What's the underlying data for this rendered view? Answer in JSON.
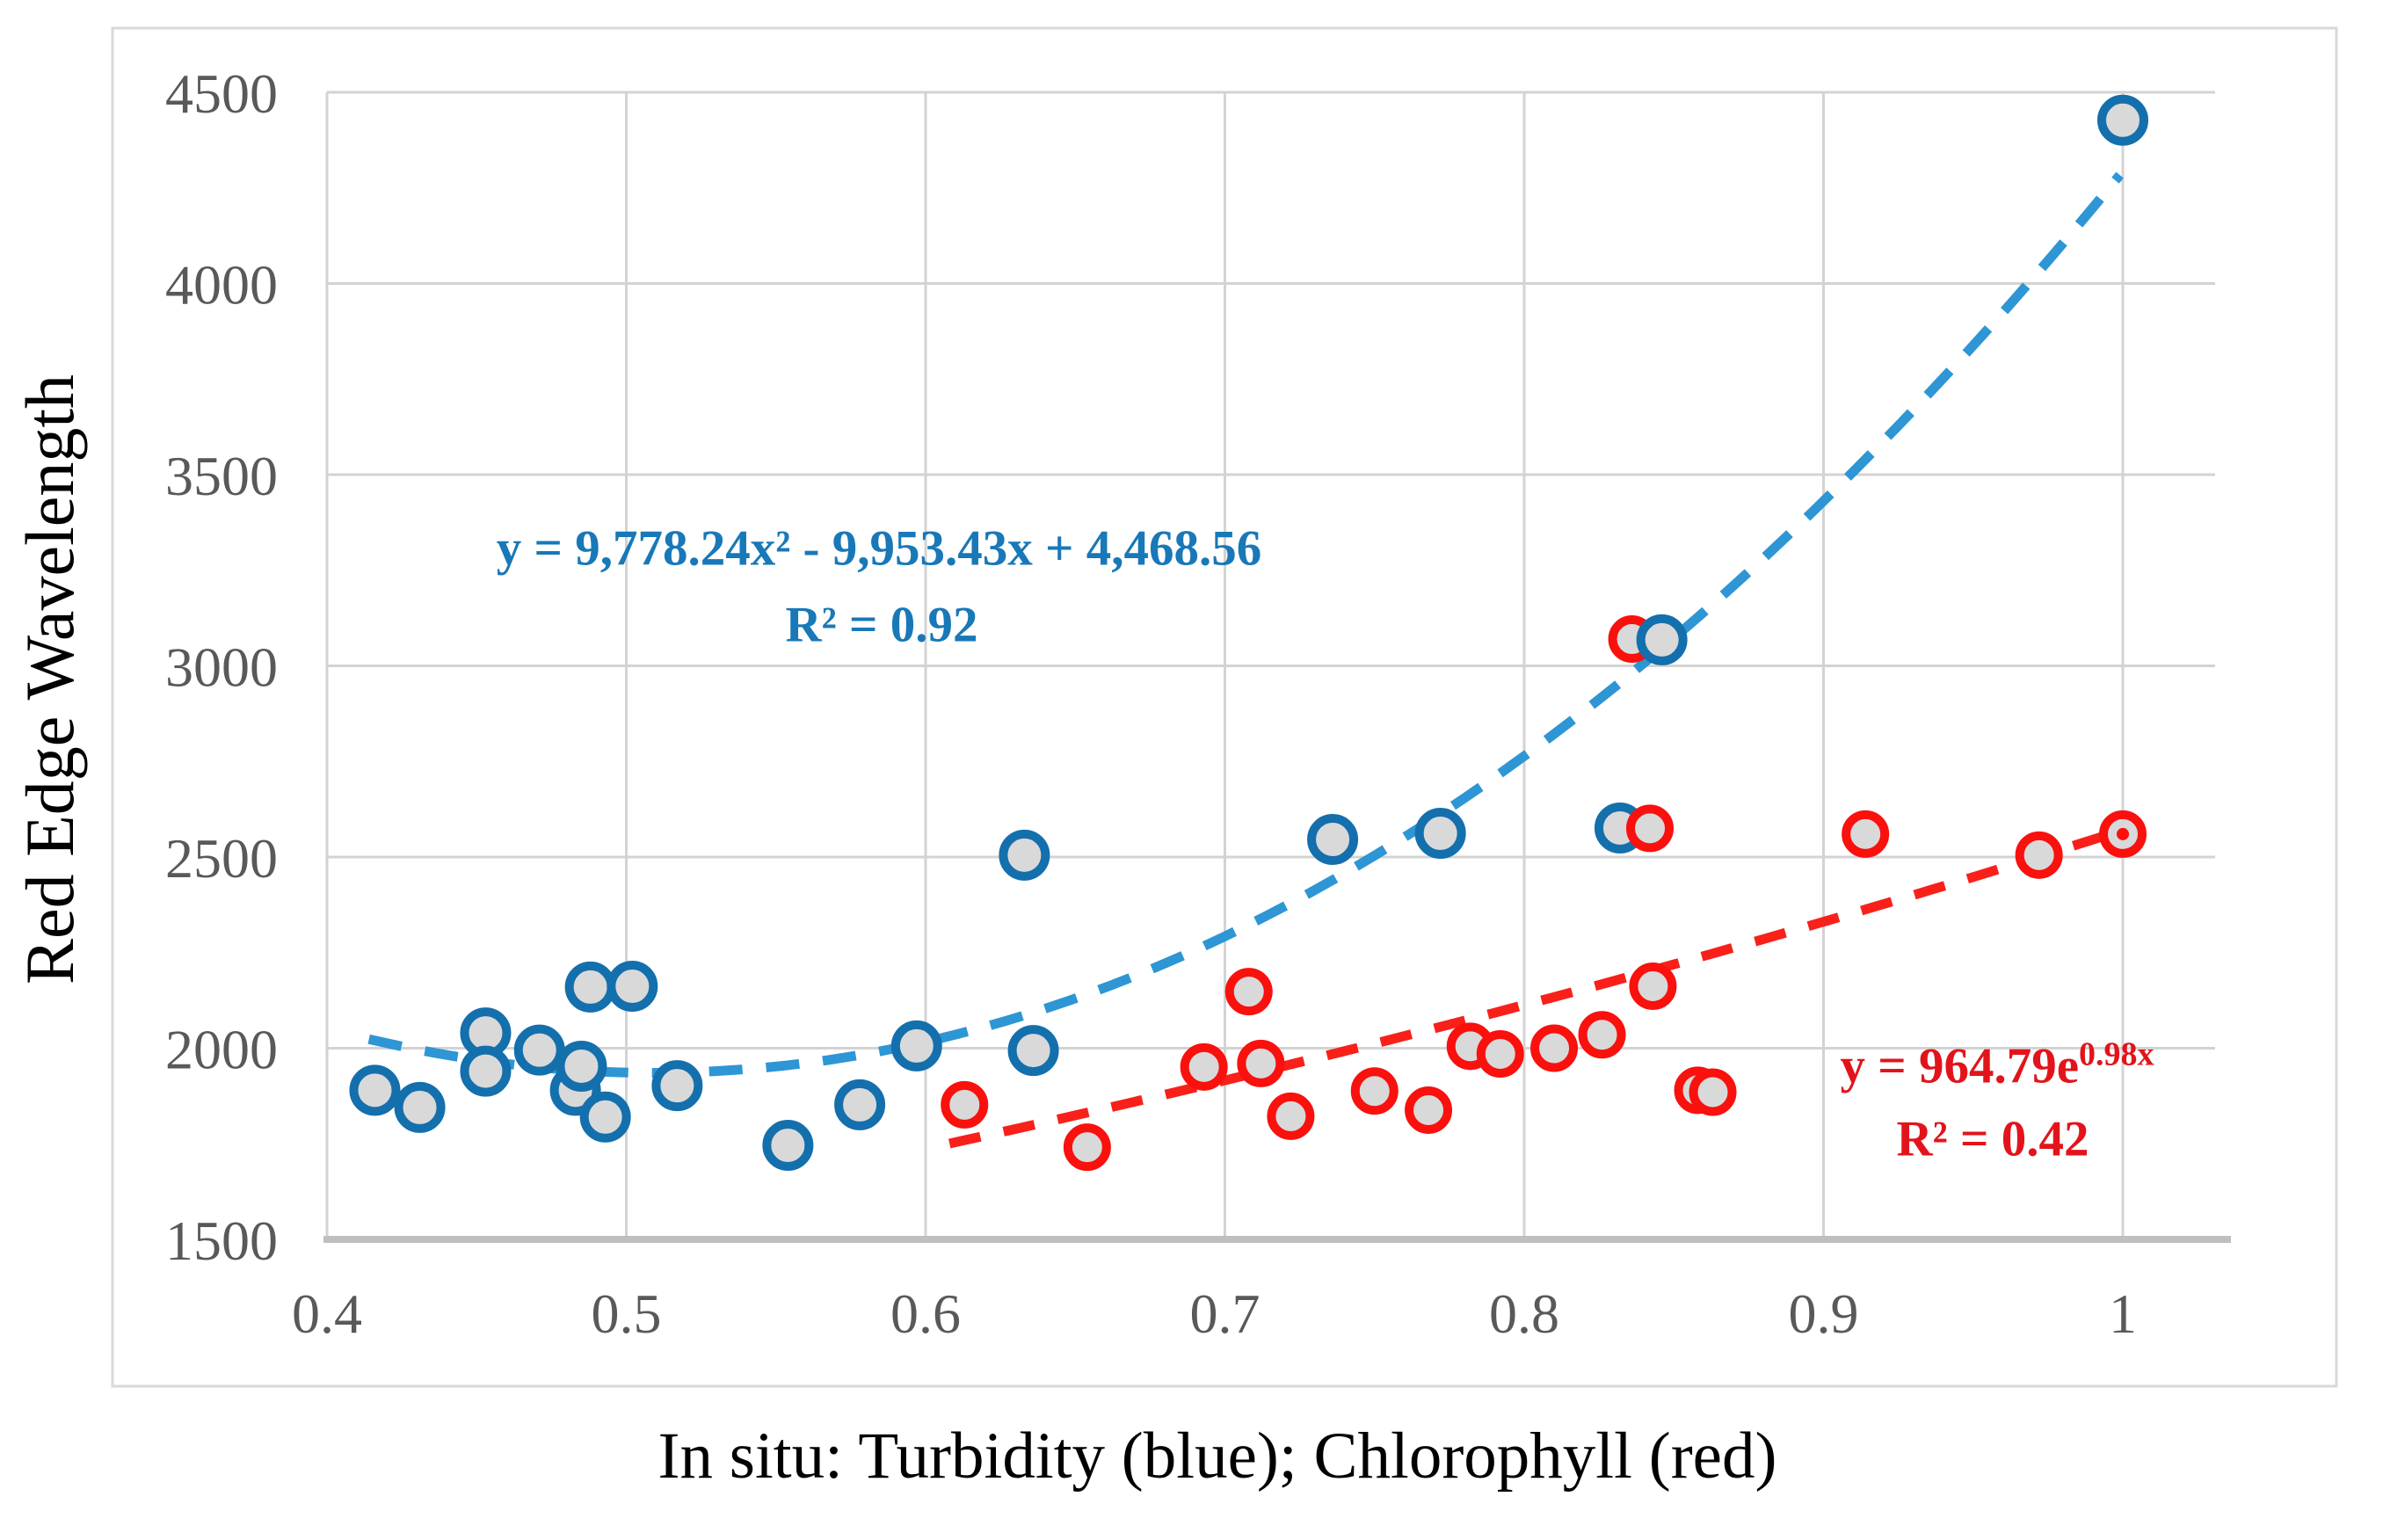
{
  "chart_data": {
    "type": "scatter",
    "title": "",
    "xlabel": "In situ: Turbidity (blue); Chlorophyll (red)",
    "ylabel": "Red Edge Wavelength",
    "xlim": [
      0.4,
      1.031
    ],
    "ylim": [
      1500,
      4500
    ],
    "x_ticks": [
      0.4,
      0.5,
      0.6,
      0.7,
      0.8,
      0.9,
      1.0
    ],
    "x_tick_labels": [
      "0.4",
      "0.5",
      "0.6",
      "0.7",
      "0.8",
      "0.9",
      "1"
    ],
    "y_ticks": [
      1500,
      2000,
      2500,
      3000,
      3500,
      4000,
      4500
    ],
    "y_tick_labels": [
      "1500",
      "2000",
      "2500",
      "3000",
      "3500",
      "4000",
      "4500"
    ],
    "grid": true,
    "legend_position": "none",
    "series": [
      {
        "name": "Turbidity",
        "marker_stroke": "#146FAD",
        "marker_fill": "#D9D9D9",
        "trend_color": "#2E96D4",
        "equation": "y = 9,778.24x² - 9,953.43x + 4,468.56",
        "r2_label": "R² = 0.92",
        "trend": {
          "type": "quadratic",
          "a": 9778.24,
          "b": -9953.43,
          "c": 4468.56,
          "x_start": 0.414,
          "x_end": 0.999
        },
        "points": [
          [
            0.416,
            1890
          ],
          [
            0.431,
            1845
          ],
          [
            0.453,
            2040
          ],
          [
            0.453,
            1940
          ],
          [
            0.471,
            1995
          ],
          [
            0.483,
            1890
          ],
          [
            0.485,
            1953
          ],
          [
            0.488,
            2160
          ],
          [
            0.493,
            1820
          ],
          [
            0.502,
            2162
          ],
          [
            0.517,
            1902
          ],
          [
            0.554,
            1746
          ],
          [
            0.578,
            1852
          ],
          [
            0.597,
            2006
          ],
          [
            0.633,
            2505
          ],
          [
            0.636,
            1994
          ],
          [
            0.736,
            2546
          ],
          [
            0.772,
            2562
          ],
          [
            0.832,
            2576
          ],
          [
            0.846,
            3068,
            "top"
          ],
          [
            1.0,
            4427
          ]
        ]
      },
      {
        "name": "Chlorophyll",
        "marker_stroke": "#FA100D",
        "marker_fill": "#D9D9D9",
        "trend_color": "#F9201A",
        "equation_base": "y = 964.79e",
        "equation_sup": "0.98x",
        "r2_label": "R² = 0.42",
        "trend": {
          "type": "exponential",
          "a": 964.79,
          "b": 0.98,
          "x_start": 0.608,
          "x_end": 1.0
        },
        "points": [
          [
            0.613,
            1852
          ],
          [
            0.654,
            1741
          ],
          [
            0.693,
            1951
          ],
          [
            0.708,
            2148
          ],
          [
            0.712,
            1960
          ],
          [
            0.722,
            1822
          ],
          [
            0.75,
            1888
          ],
          [
            0.768,
            1838
          ],
          [
            0.782,
            2005
          ],
          [
            0.792,
            1985
          ],
          [
            0.81,
            2000
          ],
          [
            0.826,
            2035
          ],
          [
            0.836,
            3070
          ],
          [
            0.842,
            2575
          ],
          [
            0.843,
            2162
          ],
          [
            0.858,
            1890
          ],
          [
            0.863,
            1885
          ],
          [
            0.914,
            2560
          ],
          [
            0.972,
            2505
          ],
          [
            1.0,
            2560,
            "dot"
          ]
        ]
      }
    ],
    "colors": {
      "grid": "#D3D3D3",
      "axis_line": "#BFBFBF",
      "tick_label": "#595959",
      "figure_border": "#D9D9D9",
      "background": "#FFFFFF"
    }
  }
}
